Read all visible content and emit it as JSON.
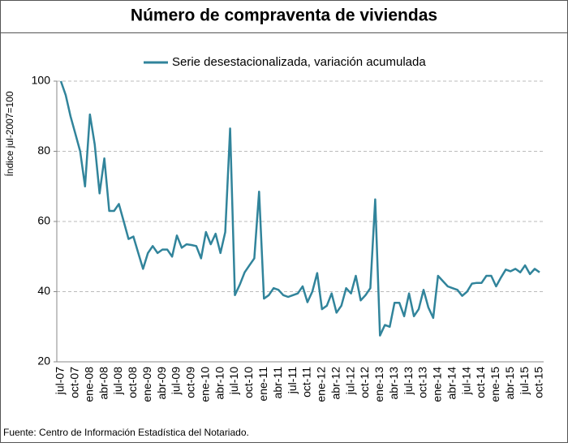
{
  "chart_data": {
    "type": "line",
    "title": "Número de compraventa de viviendas",
    "y_label": "Índice jul-2007=100",
    "source": "Fuente: Centro de Información Estadística del Notariado.",
    "categories": [
      "jul-07",
      null,
      null,
      "oct-07",
      null,
      null,
      "ene-08",
      null,
      null,
      "abr-08",
      null,
      null,
      "jul-08",
      null,
      null,
      "oct-08",
      null,
      null,
      "ene-09",
      null,
      null,
      "abr-09",
      null,
      null,
      "jul-09",
      null,
      null,
      "oct-09",
      null,
      null,
      "ene-10",
      null,
      null,
      "abr-10",
      null,
      null,
      "jul-10",
      null,
      null,
      "oct-10",
      null,
      null,
      "ene-11",
      null,
      null,
      "abr-11",
      null,
      null,
      "jul-11",
      null,
      null,
      "oct-11",
      null,
      null,
      "ene-12",
      null,
      null,
      "abr-12",
      null,
      null,
      "jul-12",
      null,
      null,
      "oct-12",
      null,
      null,
      "ene-13",
      null,
      null,
      "abr-13",
      null,
      null,
      "jul-13",
      null,
      null,
      "oct-13",
      null,
      null,
      "ene-14",
      null,
      null,
      "abr-14",
      null,
      null,
      "jul-14",
      null,
      null,
      "oct-14",
      null,
      null,
      "ene-15",
      null,
      null,
      "abr-15",
      null,
      null,
      "jul-15",
      null,
      null,
      "oct-15"
    ],
    "series": [
      {
        "name": "Serie desestacionalizada, variación acumulada",
        "color": "#31849b",
        "values": [
          100,
          96,
          90,
          85,
          80,
          70,
          90.5,
          82,
          68,
          78,
          63,
          63,
          65,
          60,
          55,
          55.7,
          51,
          46.5,
          51,
          53,
          51,
          52,
          52,
          50,
          56,
          52.5,
          53.5,
          53.3,
          53,
          49.5,
          57,
          53.5,
          56.5,
          51,
          57,
          86.5,
          39,
          42,
          45.5,
          47.5,
          49.5,
          68.5,
          38,
          39,
          41,
          40.5,
          39,
          38.5,
          39,
          39.5,
          41.5,
          37,
          40,
          45.3,
          35,
          36,
          39.5,
          34,
          36,
          41,
          39.5,
          44.5,
          37.5,
          39,
          41,
          66.3,
          27.5,
          30.5,
          30,
          36.8,
          36.8,
          33,
          39.5,
          33,
          35,
          40.5,
          35.5,
          32.5,
          44.5,
          43,
          41.5,
          41,
          40.5,
          38.8,
          40,
          42.3,
          42.5,
          42.5,
          44.5,
          44.5,
          41.5,
          44,
          46.3,
          45.8,
          46.5,
          45.5,
          47.5,
          45,
          46.5,
          45.5
        ]
      }
    ],
    "ylim": [
      20,
      100
    ],
    "yticks": [
      20,
      40,
      60,
      80,
      100
    ],
    "grid": true,
    "legend": "top"
  }
}
